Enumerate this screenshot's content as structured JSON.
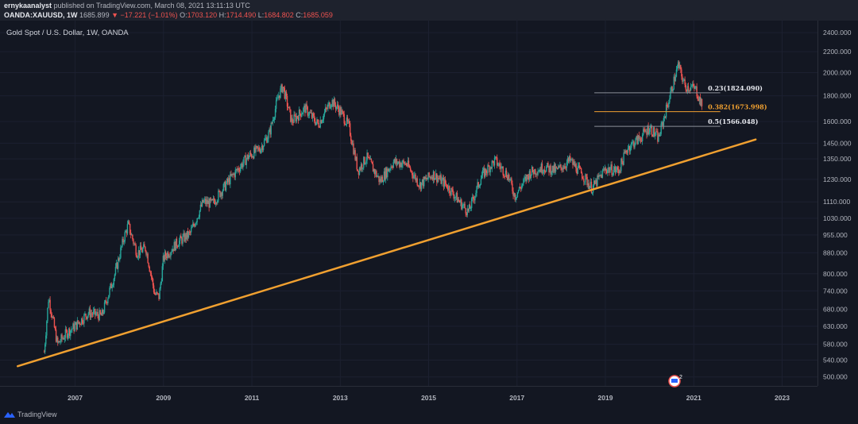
{
  "header": {
    "author": "ernykaanalyst",
    "published": "published on TradingView.com, March 08, 2021 13:11:13 UTC",
    "symbol": "OANDA:XAUUSD, 1W",
    "last": "1685.899",
    "change": "▼ −17.221 (−1.01%)",
    "open_label": "O:",
    "open_value": "1703.120",
    "high_label": "H:",
    "high_value": "1714.490",
    "low_label": "L:",
    "low_value": "1684.802",
    "close_label": "C:",
    "close_value": "1685.059"
  },
  "chart_title": "Gold Spot / U.S. Dollar, 1W, OANDA",
  "footer": {
    "brand": "TradingView",
    "logo_icon": "tradingview-logo-icon"
  },
  "badge": {
    "count": "2",
    "icon": "flag-icon"
  },
  "colors": {
    "background": "#131722",
    "up": "#26a69a",
    "down": "#ef5350",
    "trendline": "#f0a030",
    "fib_gray": "#8a8e99",
    "fib_orange": "#f0a030"
  },
  "chart_data": {
    "type": "candlestick",
    "title": "Gold Spot / U.S. Dollar, 1W, OANDA",
    "y_scale": "log",
    "y_ticks": [
      2400,
      2200,
      2000,
      1800,
      1600,
      1450,
      1350,
      1230,
      1110,
      1030,
      955,
      880,
      800,
      740,
      680,
      630,
      580,
      540,
      500
    ],
    "y_tick_labels": [
      "2400.000",
      "2200.000",
      "2000.000",
      "1800.000",
      "1600.000",
      "1450.000",
      "1350.000",
      "1230.000",
      "1110.000",
      "1030.000",
      "955.000",
      "880.000",
      "800.000",
      "740.000",
      "680.000",
      "630.000",
      "580.000",
      "540.000",
      "500.000"
    ],
    "x_ticks": [
      2007,
      2009,
      2011,
      2013,
      2015,
      2017,
      2019,
      2021,
      2023
    ],
    "x_tick_labels": [
      "2007",
      "2009",
      "2011",
      "2013",
      "2015",
      "2017",
      "2019",
      "2021",
      "2023"
    ],
    "x_range": [
      2005.3,
      2023.8
    ],
    "y_range": [
      480,
      2480
    ],
    "price_path": [
      [
        2006.3,
        560
      ],
      [
        2006.4,
        720
      ],
      [
        2006.6,
        580
      ],
      [
        2006.8,
        610
      ],
      [
        2007.0,
        630
      ],
      [
        2007.3,
        670
      ],
      [
        2007.6,
        660
      ],
      [
        2007.9,
        800
      ],
      [
        2008.1,
        940
      ],
      [
        2008.2,
        1000
      ],
      [
        2008.4,
        880
      ],
      [
        2008.6,
        900
      ],
      [
        2008.8,
        730
      ],
      [
        2008.9,
        720
      ],
      [
        2009.0,
        860
      ],
      [
        2009.3,
        920
      ],
      [
        2009.6,
        960
      ],
      [
        2009.9,
        1110
      ],
      [
        2010.1,
        1100
      ],
      [
        2010.5,
        1230
      ],
      [
        2010.9,
        1360
      ],
      [
        2011.2,
        1420
      ],
      [
        2011.4,
        1520
      ],
      [
        2011.6,
        1800
      ],
      [
        2011.7,
        1880
      ],
      [
        2011.9,
        1600
      ],
      [
        2012.2,
        1700
      ],
      [
        2012.5,
        1580
      ],
      [
        2012.8,
        1760
      ],
      [
        2013.0,
        1680
      ],
      [
        2013.2,
        1560
      ],
      [
        2013.4,
        1280
      ],
      [
        2013.6,
        1360
      ],
      [
        2013.9,
        1220
      ],
      [
        2014.2,
        1330
      ],
      [
        2014.5,
        1320
      ],
      [
        2014.8,
        1200
      ],
      [
        2015.1,
        1260
      ],
      [
        2015.4,
        1200
      ],
      [
        2015.7,
        1110
      ],
      [
        2015.9,
        1060
      ],
      [
        2016.2,
        1250
      ],
      [
        2016.5,
        1340
      ],
      [
        2016.8,
        1250
      ],
      [
        2016.95,
        1140
      ],
      [
        2017.3,
        1270
      ],
      [
        2017.6,
        1300
      ],
      [
        2017.9,
        1280
      ],
      [
        2018.2,
        1340
      ],
      [
        2018.5,
        1250
      ],
      [
        2018.7,
        1180
      ],
      [
        2019.0,
        1290
      ],
      [
        2019.3,
        1280
      ],
      [
        2019.5,
        1420
      ],
      [
        2019.8,
        1490
      ],
      [
        2020.0,
        1560
      ],
      [
        2020.2,
        1480
      ],
      [
        2020.4,
        1720
      ],
      [
        2020.6,
        2000
      ],
      [
        2020.65,
        2070
      ],
      [
        2020.8,
        1880
      ],
      [
        2020.95,
        1870
      ],
      [
        2021.05,
        1850
      ],
      [
        2021.2,
        1700
      ]
    ],
    "trendline": {
      "from": [
        2005.7,
        525
      ],
      "to": [
        2022.4,
        1475
      ]
    },
    "fibonacci": [
      {
        "label": "0.23(1824.090)",
        "value": 1824.09,
        "x_start": 2018.75,
        "x_end": 2021.6,
        "color": "#8a8e99"
      },
      {
        "label": "0.382(1673.998)",
        "value": 1673.998,
        "x_start": 2018.75,
        "x_end": 2021.6,
        "color": "#f0a030"
      },
      {
        "label": "0.5(1566.048)",
        "value": 1566.048,
        "x_start": 2018.75,
        "x_end": 2021.6,
        "color": "#8a8e99"
      }
    ]
  }
}
